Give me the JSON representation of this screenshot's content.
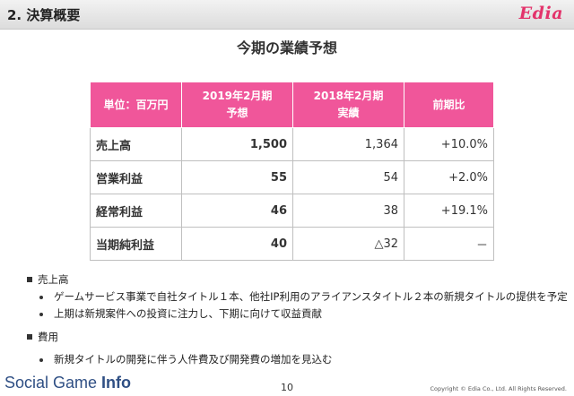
{
  "header": {
    "section_title": "2. 決算概要",
    "logo_text": "Edia",
    "logo_color": "#e3336b"
  },
  "slide_title": "今期の業績予想",
  "table": {
    "header_color": "#f0569a",
    "headers": [
      {
        "line1": "単位：百万円",
        "line2": ""
      },
      {
        "line1": "2019年2月期",
        "line2": "予想"
      },
      {
        "line1": "2018年2月期",
        "line2": "実績"
      },
      {
        "line1": "前期比",
        "line2": ""
      }
    ],
    "rows": [
      {
        "label": "売上高",
        "forecast": "1,500",
        "actual": "1,364",
        "ratio": "+10.0%"
      },
      {
        "label": "営業利益",
        "forecast": "55",
        "actual": "54",
        "ratio": "+2.0%"
      },
      {
        "label": "経常利益",
        "forecast": "46",
        "actual": "38",
        "ratio": "+19.1%"
      },
      {
        "label": "当期純利益",
        "forecast": "40",
        "actual": "△32",
        "ratio": "－"
      }
    ]
  },
  "notes": {
    "sales": {
      "heading": "売上高",
      "items": [
        "ゲームサービス事業で自社タイトル１本、他社IP利用のアライアンスタイトル２本の新規タイトルの提供を予定",
        "上期は新規案件への投資に注力し、下期に向けて収益貢献"
      ]
    },
    "costs": {
      "heading": "費用",
      "items": [
        "新規タイトルの開発に伴う人件費及び開発費の増加を見込む"
      ]
    }
  },
  "footer": {
    "brand_regular": "Social Game ",
    "brand_bold": "Info",
    "page_number": "10",
    "copyright": "Copyright © Edia Co., Ltd. All Rights Reserved."
  }
}
